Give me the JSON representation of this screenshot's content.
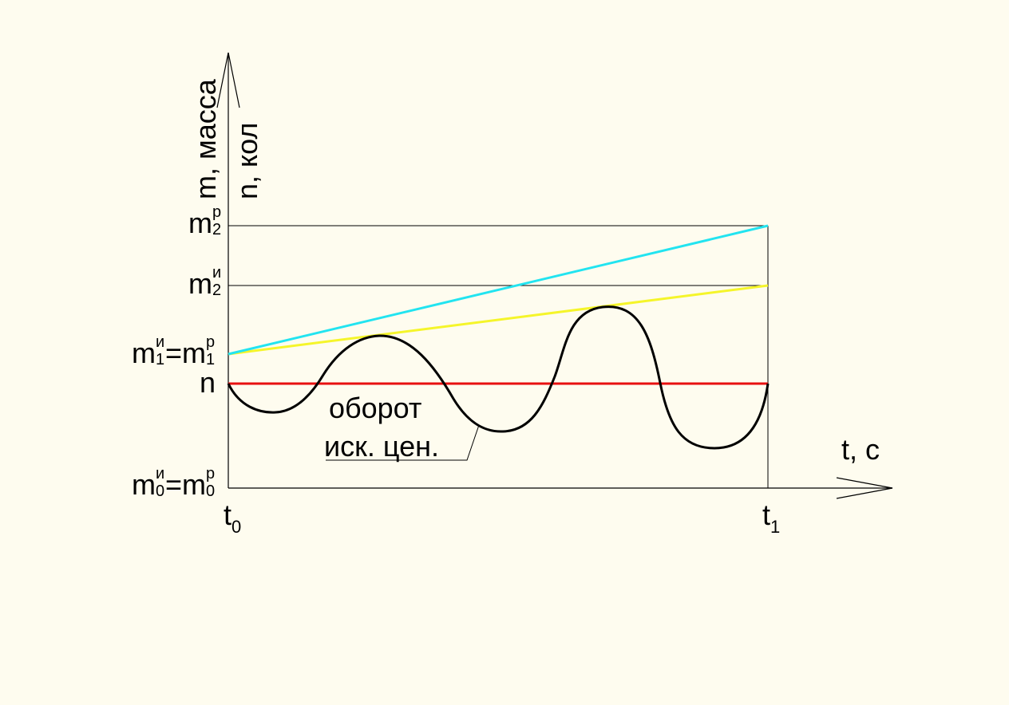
{
  "axes": {
    "y_label_mass": "m, масса",
    "y_label_count": "n, кол",
    "x_label": "t, c"
  },
  "y_ticks": {
    "m2r": {
      "base": "m",
      "sup": "р",
      "sub": "2"
    },
    "m2i": {
      "base": "m",
      "sup": "и",
      "sub": "2"
    },
    "m1": {
      "base1": "m",
      "sup1": "и",
      "sub1": "1",
      "eq": "=",
      "base2": "m",
      "sup2": "р",
      "sub2": "1"
    },
    "n": "n",
    "m0": {
      "base1": "m",
      "sup1": "и",
      "sub1": "0",
      "eq": "=",
      "base2": "m",
      "sup2": "р",
      "sub2": "0"
    }
  },
  "x_ticks": {
    "t0": {
      "base": "t",
      "sub": "0"
    },
    "t1": {
      "base": "t",
      "sub": "1"
    }
  },
  "annotation": {
    "line1": "оборот",
    "line2": "иск. цен."
  },
  "colors": {
    "background": "#FEFCEF",
    "real_money_line": "#22E4F0",
    "ideal_money_line": "#F5F52A",
    "n_line": "#E81010",
    "curve": "#000000"
  }
}
